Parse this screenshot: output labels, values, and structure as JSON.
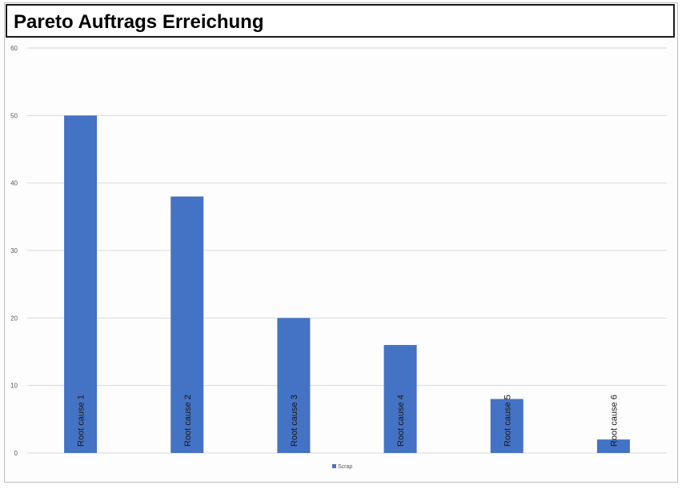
{
  "title": "Pareto Auftrags Erreichung",
  "chart_data": {
    "type": "bar",
    "categories": [
      "Root cause 1",
      "Root cause 2",
      "Root cause 3",
      "Root cause 4",
      "Root cause 5",
      "Root cause 6"
    ],
    "series": [
      {
        "name": "Scrap",
        "values": [
          50,
          38,
          20,
          16,
          8,
          2
        ],
        "color": "#4472c4"
      }
    ],
    "yticks": [
      "0",
      "10",
      "20",
      "30",
      "40",
      "50",
      "60"
    ],
    "ylim": [
      0,
      60
    ],
    "grid": true,
    "legend_position": "bottom-center",
    "category_label_placement": "rotated-vertical"
  }
}
